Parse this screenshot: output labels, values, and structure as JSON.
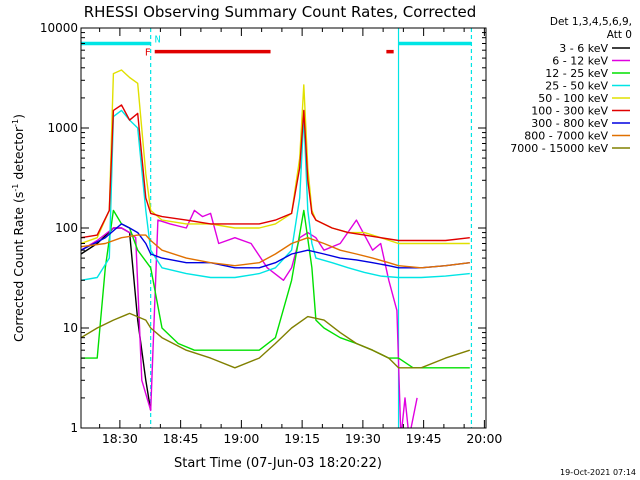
{
  "chart_data": {
    "type": "line",
    "title": "RHESSI Observing Summary Count Rates, Corrected",
    "xlabel": "Start Time (07-Jun-03 18:20:22)",
    "ylabel_main": "Corrected Count Rate (s",
    "ylabel_sup1": "-1",
    "ylabel_mid": " detector",
    "ylabel_sup2": "-1",
    "ylabel_end": ")",
    "y_scale": "log",
    "ylim": [
      1,
      10000
    ],
    "x_unit": "minutes since 18:20:22",
    "xlim": [
      0,
      100
    ],
    "x_ticks": [
      {
        "label": "18:30",
        "x": 9.6
      },
      {
        "label": "18:45",
        "x": 24.6
      },
      {
        "label": "19:00",
        "x": 39.6
      },
      {
        "label": "19:15",
        "x": 54.6
      },
      {
        "label": "19:30",
        "x": 69.6
      },
      {
        "label": "19:45",
        "x": 84.6
      },
      {
        "label": "20:00",
        "x": 99.6
      }
    ],
    "y_ticks": [
      {
        "label": "1",
        "value": 1
      },
      {
        "label": "10",
        "value": 10
      },
      {
        "label": "100",
        "value": 100
      },
      {
        "label": "1000",
        "value": 1000
      },
      {
        "label": "10000",
        "value": 10000
      }
    ],
    "legend_header": [
      "Det 1,3,4,5,6,9,",
      "Att 0"
    ],
    "legend_position": "right",
    "timestamp": "19-Oct-2021 07:14",
    "flags": {
      "night": {
        "label": "N",
        "color": "#00e5e5",
        "y": 7000,
        "segments": [
          [
            0,
            17.2
          ],
          [
            78.4,
            96.4
          ]
        ]
      },
      "flare": {
        "label": "F",
        "color": "#e00000",
        "y": 5800,
        "segments": [
          [
            18.2,
            46.8
          ],
          [
            75.4,
            77.2
          ]
        ]
      }
    },
    "vlines": [
      {
        "x": 17.2,
        "style": "dashed",
        "color": "#00e5e5"
      },
      {
        "x": 78.4,
        "style": "solid",
        "color": "#00e5e5"
      },
      {
        "x": 96.4,
        "style": "dashed",
        "color": "#00e5e5"
      }
    ],
    "series": [
      {
        "name": "3 - 6 keV",
        "color": "#000000",
        "x": [
          0,
          4,
          8,
          10,
          12,
          14,
          16,
          17.2
        ],
        "y": [
          55,
          70,
          100,
          100,
          90,
          12,
          3,
          1.5
        ]
      },
      {
        "name": "6 - 12 keV",
        "color": "#e000e0",
        "x": [
          0,
          4,
          8,
          10,
          12,
          13.5,
          15,
          17.2,
          19,
          22,
          26,
          28,
          30,
          32,
          34,
          38,
          42,
          46,
          50,
          52,
          54,
          56,
          58,
          60,
          64,
          68,
          72,
          74,
          76,
          78,
          79,
          80,
          81,
          83
        ],
        "y": [
          60,
          75,
          100,
          100,
          90,
          80,
          3,
          1.5,
          120,
          110,
          100,
          150,
          130,
          140,
          70,
          80,
          70,
          40,
          30,
          40,
          80,
          90,
          80,
          60,
          70,
          120,
          60,
          70,
          30,
          15,
          0.8,
          2,
          0.8,
          2
        ]
      },
      {
        "name": "12 - 25 keV",
        "color": "#00e000",
        "x": [
          0,
          4,
          6,
          8,
          10,
          12,
          14,
          17.2,
          20,
          24,
          28,
          32,
          36,
          40,
          44,
          48,
          52,
          55,
          57,
          58,
          60,
          64,
          68,
          72,
          76,
          78.4,
          82,
          86,
          90,
          96
        ],
        "y": [
          5,
          5,
          40,
          150,
          110,
          100,
          60,
          40,
          10,
          7,
          6,
          6,
          6,
          6,
          6,
          8,
          30,
          150,
          40,
          12,
          10,
          8,
          7,
          6,
          5,
          5,
          4,
          4,
          4,
          4
        ]
      },
      {
        "name": "25 - 50 keV",
        "color": "#00e5e5",
        "x": [
          0,
          4,
          7,
          8,
          10,
          12,
          14,
          16,
          17.2,
          20,
          26,
          32,
          38,
          44,
          48,
          52,
          54,
          55,
          56,
          57,
          58,
          62,
          66,
          70,
          74,
          78.4,
          84,
          90,
          96
        ],
        "y": [
          30,
          32,
          50,
          1300,
          1500,
          1200,
          1000,
          150,
          60,
          40,
          35,
          32,
          32,
          35,
          40,
          60,
          200,
          1300,
          150,
          70,
          50,
          45,
          40,
          36,
          33,
          32,
          32,
          33,
          35
        ]
      },
      {
        "name": "50 - 100 keV",
        "color": "#e0e000",
        "x": [
          0,
          4,
          7,
          8,
          10,
          12,
          14,
          16,
          17.2,
          20,
          26,
          32,
          38,
          44,
          48,
          52,
          54,
          55,
          56,
          57,
          58,
          62,
          66,
          70,
          74,
          78.4,
          84,
          90,
          96
        ],
        "y": [
          70,
          80,
          150,
          3500,
          3800,
          3200,
          2800,
          350,
          150,
          120,
          110,
          110,
          100,
          100,
          110,
          140,
          500,
          2700,
          400,
          150,
          120,
          100,
          90,
          90,
          80,
          70,
          70,
          70,
          70
        ]
      },
      {
        "name": "100 - 300 keV",
        "color": "#e00000",
        "x": [
          0,
          4,
          7,
          8,
          10,
          12,
          14,
          16,
          17.2,
          20,
          26,
          32,
          38,
          44,
          48,
          52,
          54,
          55,
          56,
          57,
          58,
          62,
          66,
          70,
          74,
          78.4,
          84,
          90,
          96
        ],
        "y": [
          80,
          85,
          150,
          1500,
          1700,
          1200,
          1400,
          200,
          140,
          130,
          120,
          110,
          110,
          110,
          120,
          140,
          400,
          1500,
          300,
          140,
          120,
          100,
          90,
          85,
          80,
          75,
          75,
          75,
          80
        ]
      },
      {
        "name": "300 - 800 keV",
        "color": "#0000e0",
        "x": [
          0,
          6,
          10,
          12,
          14,
          16,
          17.2,
          20,
          26,
          32,
          38,
          44,
          48,
          52,
          56,
          60,
          64,
          68,
          72,
          76,
          78.4,
          84,
          90,
          96
        ],
        "y": [
          60,
          80,
          110,
          100,
          90,
          70,
          55,
          50,
          45,
          45,
          40,
          40,
          45,
          55,
          60,
          55,
          50,
          48,
          45,
          42,
          40,
          40,
          42,
          45
        ]
      },
      {
        "name": "800 - 7000 keV",
        "color": "#e07000",
        "x": [
          0,
          6,
          10,
          14,
          16,
          17.2,
          20,
          26,
          32,
          38,
          44,
          48,
          52,
          56,
          60,
          64,
          68,
          72,
          76,
          78.4,
          84,
          90,
          96
        ],
        "y": [
          65,
          70,
          80,
          85,
          85,
          75,
          60,
          50,
          45,
          42,
          45,
          55,
          70,
          80,
          70,
          60,
          55,
          50,
          45,
          42,
          40,
          42,
          45
        ]
      },
      {
        "name": "7000 - 15000 keV",
        "color": "#808000",
        "x": [
          0,
          4,
          8,
          12,
          16,
          17.2,
          20,
          26,
          32,
          38,
          44,
          48,
          52,
          56,
          60,
          64,
          68,
          72,
          76,
          78.4,
          84,
          90,
          96
        ],
        "y": [
          8,
          10,
          12,
          14,
          12,
          10,
          8,
          6,
          5,
          4,
          5,
          7,
          10,
          13,
          12,
          9,
          7,
          6,
          5,
          4,
          4,
          5,
          6
        ]
      }
    ]
  }
}
